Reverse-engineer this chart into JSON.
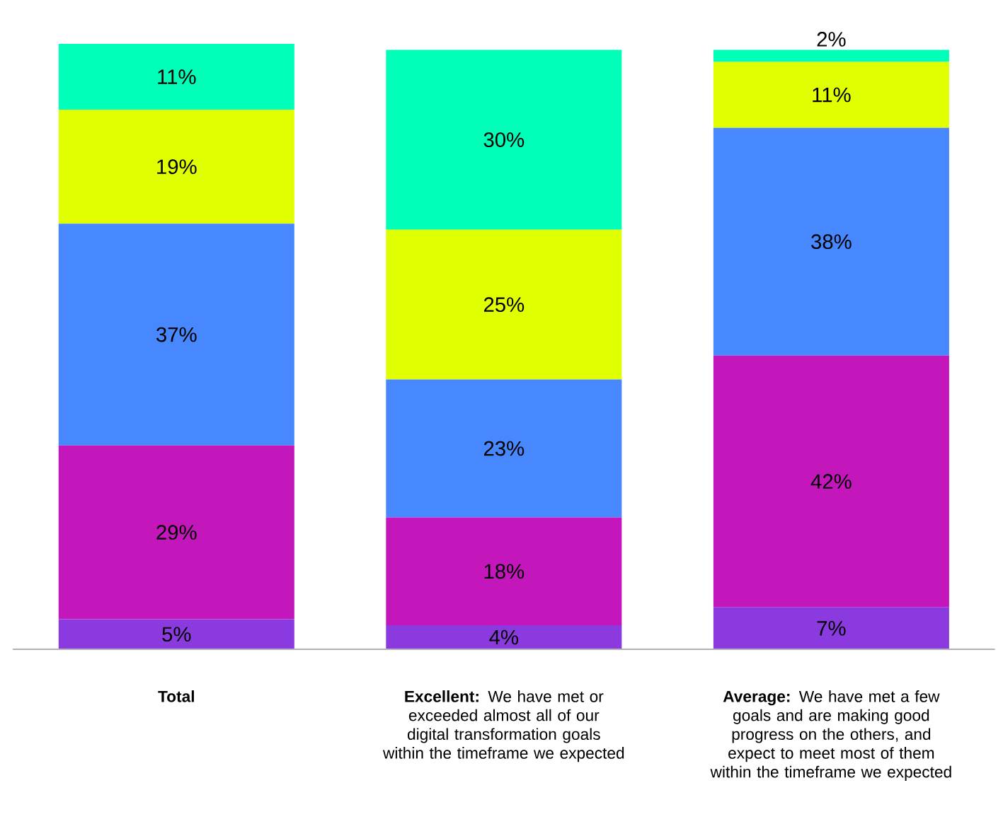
{
  "chart_data": {
    "type": "bar",
    "stacked": true,
    "tick_labels": "x",
    "categories": [
      "**Total**",
      "**Excellent:** We have met or exceeded almost all of our digital transformation goals within the timeframe we expected",
      "**Average:** We have met a few goals and are making good progress on the others, and expect to meet most of them within the timeframe we expected"
    ],
    "series": [
      {
        "color": "#8b3ae0",
        "values": [
          5,
          4,
          7
        ],
        "value_labels": [
          "5%",
          "4%",
          "7%"
        ]
      },
      {
        "color": "#c317bb",
        "values": [
          29,
          18,
          42
        ],
        "value_labels": [
          "29%",
          "18%",
          "42%"
        ]
      },
      {
        "color": "#4788fe",
        "values": [
          37,
          23,
          38
        ],
        "value_labels": [
          "37%",
          "23%",
          "38%"
        ]
      },
      {
        "color": "#e0ff00",
        "values": [
          19,
          25,
          11
        ],
        "value_labels": [
          "19%",
          "25%",
          "11%"
        ]
      },
      {
        "color": "#00ffb8",
        "values": [
          11,
          30,
          2
        ],
        "value_labels": [
          "11%",
          "30%",
          "2%"
        ]
      }
    ]
  }
}
